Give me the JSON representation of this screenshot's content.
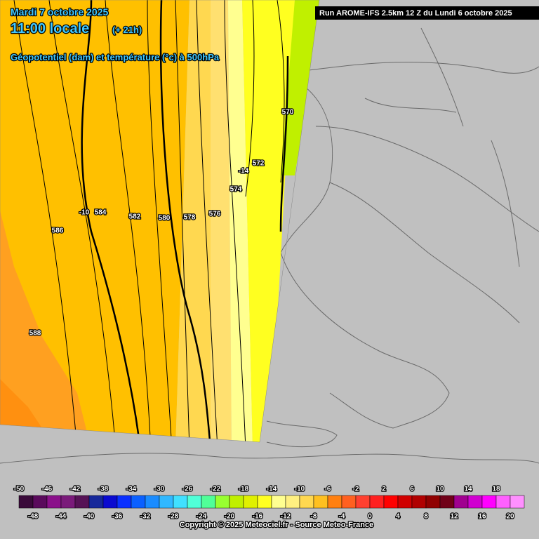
{
  "header": {
    "date": "Mardi 7 octobre 2025",
    "time": "11:00 locale",
    "offset": "(+ 21h)",
    "subtitle": "Géopotentiel (dam) et température (°c) à 500hPa",
    "run": "Run AROME-IFS 2.5km 12 Z du Lundi 6 octobre 2025"
  },
  "map": {
    "contour_labels": [
      588,
      586,
      584,
      582,
      580,
      578,
      576,
      574,
      572,
      570
    ],
    "temperature_labels": [
      -10,
      -14
    ]
  },
  "legend": {
    "ticks": [
      -50,
      -48,
      -46,
      -44,
      -42,
      -40,
      -38,
      -36,
      -34,
      -32,
      -30,
      -28,
      -26,
      -24,
      -22,
      -20,
      -18,
      -16,
      -14,
      -12,
      -10,
      -8,
      -6,
      -4,
      -2,
      0,
      2,
      4,
      6,
      8,
      10,
      12,
      14,
      16,
      18,
      20
    ],
    "colors": [
      "#3a0a3a",
      "#5a0a5c",
      "#8a108a",
      "#7a1a7a",
      "#561256",
      "#2c2c70",
      "#16289a",
      "#0a0ad0",
      "#0a30ff",
      "#0a60ff",
      "#1a8cff",
      "#30b8ff",
      "#40e0ff",
      "#50ffd8",
      "#50ff98",
      "#70ff60",
      "#98ff30",
      "#c0f000",
      "#e0f000",
      "#ffff20",
      "#ffff90",
      "#fff080",
      "#ffd850",
      "#ffc020",
      "#ffa000",
      "#ff8010",
      "#ff6020",
      "#ff4030",
      "#ff2020",
      "#ff0000",
      "#d00000",
      "#b00000",
      "#900000",
      "#700018",
      "#800060",
      "#a00090",
      "#d000d0",
      "#ff00ff",
      "#ff60ff",
      "#ff90ff"
    ]
  },
  "footer": {
    "copyright": "Copyright © 2025 Meteociel.fr - Source Meteo-France"
  }
}
